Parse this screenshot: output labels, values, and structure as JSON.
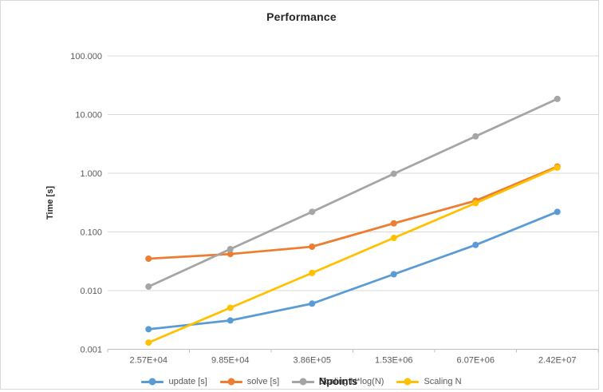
{
  "chart_data": {
    "type": "line",
    "title": "Performance",
    "xlabel": "Npoints",
    "ylabel": "Time [s]",
    "x_scale": "category",
    "y_scale": "log",
    "ylim": [
      0.001,
      100
    ],
    "grid": "horizontal",
    "legend_position": "bottom",
    "categories": [
      "2.57E+04",
      "9.85E+04",
      "3.86E+05",
      "1.53E+06",
      "6.07E+06",
      "2.42E+07"
    ],
    "yticks": [
      {
        "value": 100,
        "label": "100.000"
      },
      {
        "value": 10,
        "label": "10.000"
      },
      {
        "value": 1,
        "label": "1.000"
      },
      {
        "value": 0.1,
        "label": "0.100"
      },
      {
        "value": 0.01,
        "label": "0.010"
      },
      {
        "value": 0.001,
        "label": "0.001"
      }
    ],
    "series": [
      {
        "name": "update [s]",
        "color": "#5B9BD5",
        "values": [
          0.0022,
          0.0031,
          0.006,
          0.019,
          0.06,
          0.22
        ]
      },
      {
        "name": "solve [s]",
        "color": "#ED7D31",
        "values": [
          0.035,
          0.042,
          0.056,
          0.14,
          0.34,
          1.3
        ]
      },
      {
        "name": "Scaling N*log(N)",
        "color": "#A5A5A5",
        "values": [
          0.0117,
          0.051,
          0.22,
          0.98,
          4.26,
          18.5
        ]
      },
      {
        "name": "Scaling N",
        "color": "#FFC000",
        "values": [
          0.0013,
          0.0051,
          0.02,
          0.079,
          0.31,
          1.25
        ]
      }
    ]
  },
  "style": {
    "grid_color": "#D9D9D9",
    "axis_color": "#BFBFBF",
    "tick_text_color": "#595959",
    "title_color": "#262626",
    "frame_color": "#D9D9D9"
  }
}
